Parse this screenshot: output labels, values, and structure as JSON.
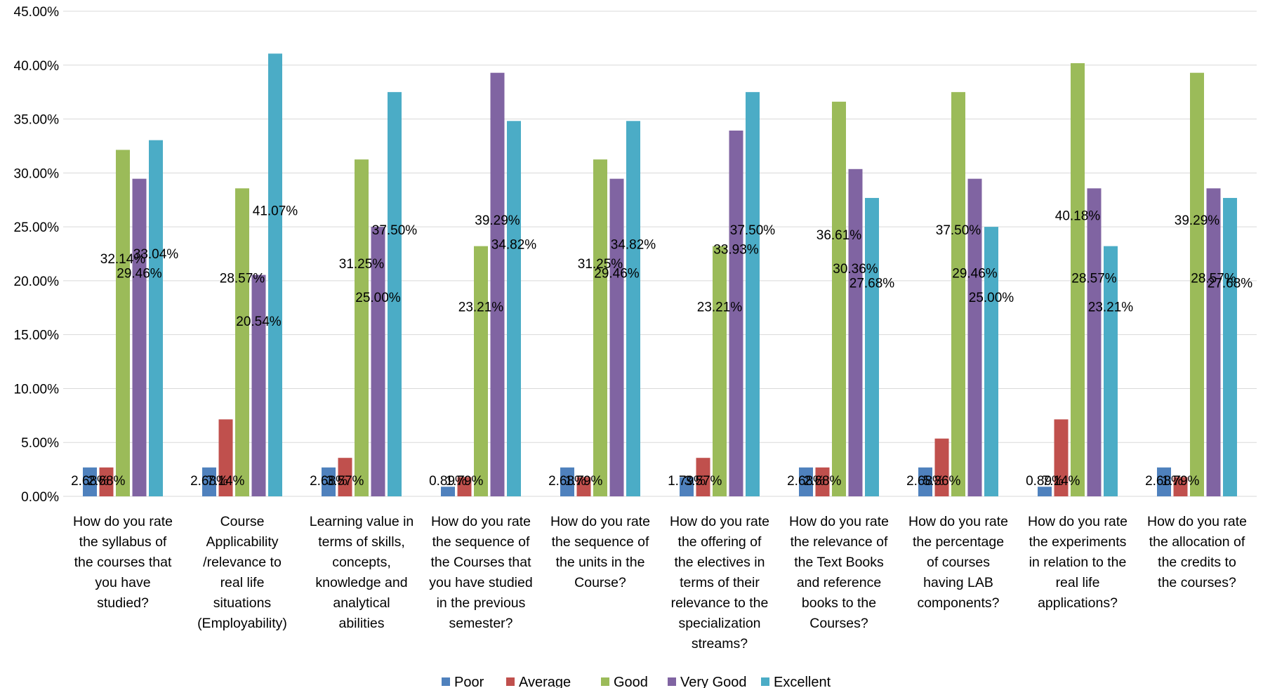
{
  "chart_data": {
    "type": "bar",
    "title": "",
    "xlabel": "",
    "ylabel": "",
    "ylim": [
      0,
      45
    ],
    "y_ticks": [
      "0.00%",
      "5.00%",
      "10.00%",
      "15.00%",
      "20.00%",
      "25.00%",
      "30.00%",
      "35.00%",
      "40.00%",
      "45.00%"
    ],
    "grid": true,
    "legend_position": "bottom",
    "categories": [
      [
        "How do you rate",
        "the syllabus of",
        "the courses that",
        "you have",
        "studied?"
      ],
      [
        "Course",
        "Applicability",
        "/relevance to",
        "real life",
        "situations",
        "(Employability)"
      ],
      [
        "Learning value in",
        "terms of skills,",
        "concepts,",
        "knowledge and",
        "analytical",
        "abilities"
      ],
      [
        "How do you rate",
        "the sequence of",
        "the Courses that",
        "you have studied",
        "in the previous",
        "semester?"
      ],
      [
        "How do you rate",
        "the sequence of",
        "the units in the",
        "Course?"
      ],
      [
        "How do you rate",
        "the offering of",
        "the electives in",
        "terms of their",
        "relevance to the",
        "specialization",
        "streams?"
      ],
      [
        "How do you rate",
        "the relevance of",
        "the Text Books",
        "and reference",
        "books to the",
        "Courses?"
      ],
      [
        "How do you rate",
        "the percentage",
        "of courses",
        "having LAB",
        "components?"
      ],
      [
        "How do you rate",
        "the experiments",
        "in relation to the",
        "real life",
        "applications?"
      ],
      [
        "How do you rate",
        "the allocation of",
        "the credits to",
        "the courses?"
      ]
    ],
    "series": [
      {
        "name": "Poor",
        "color": "#4f81bd",
        "values": [
          2.68,
          2.68,
          2.68,
          0.89,
          2.68,
          1.79,
          2.68,
          2.68,
          0.89,
          2.68
        ],
        "labels": [
          "2.68%",
          "2.68%",
          "2.68%",
          "0.89%",
          "2.68%",
          "1.79%",
          "2.68%",
          "2.68%",
          "0.89%",
          "2.68%"
        ]
      },
      {
        "name": "Average",
        "color": "#c0504d",
        "values": [
          2.68,
          7.14,
          3.57,
          1.79,
          1.79,
          3.57,
          2.68,
          5.36,
          7.14,
          1.79
        ],
        "labels": [
          "2.68%",
          "7.14%",
          "3.57%",
          "1.79%",
          "1.79%",
          "3.57%",
          "2.68%",
          "5.36%",
          "7.14%",
          "1.79%"
        ]
      },
      {
        "name": "Good",
        "color": "#9bbb59",
        "values": [
          32.14,
          28.57,
          31.25,
          23.21,
          31.25,
          23.21,
          36.61,
          37.5,
          40.18,
          39.29
        ],
        "labels": [
          "32.14%",
          "28.57%",
          "31.25%",
          "23.21%",
          "31.25%",
          "23.21%",
          "36.61%",
          "37.50%",
          "40.18%",
          "39.29%"
        ]
      },
      {
        "name": "Very Good",
        "color": "#8064a2",
        "values": [
          29.46,
          20.54,
          25.0,
          39.29,
          29.46,
          33.93,
          30.36,
          29.46,
          28.57,
          28.57
        ],
        "labels": [
          "29.46%",
          "20.54%",
          "25.00%",
          "39.29%",
          "29.46%",
          "33.93%",
          "30.36%",
          "29.46%",
          "28.57%",
          "28.57%"
        ]
      },
      {
        "name": "Excellent",
        "color": "#4bacc6",
        "values": [
          33.04,
          41.07,
          37.5,
          34.82,
          34.82,
          37.5,
          27.68,
          25.0,
          23.21,
          27.68
        ],
        "labels": [
          "33.04%",
          "41.07%",
          "37.50%",
          "34.82%",
          "34.82%",
          "37.50%",
          "27.68%",
          "25.00%",
          "23.21%",
          "27.68%"
        ]
      }
    ]
  }
}
